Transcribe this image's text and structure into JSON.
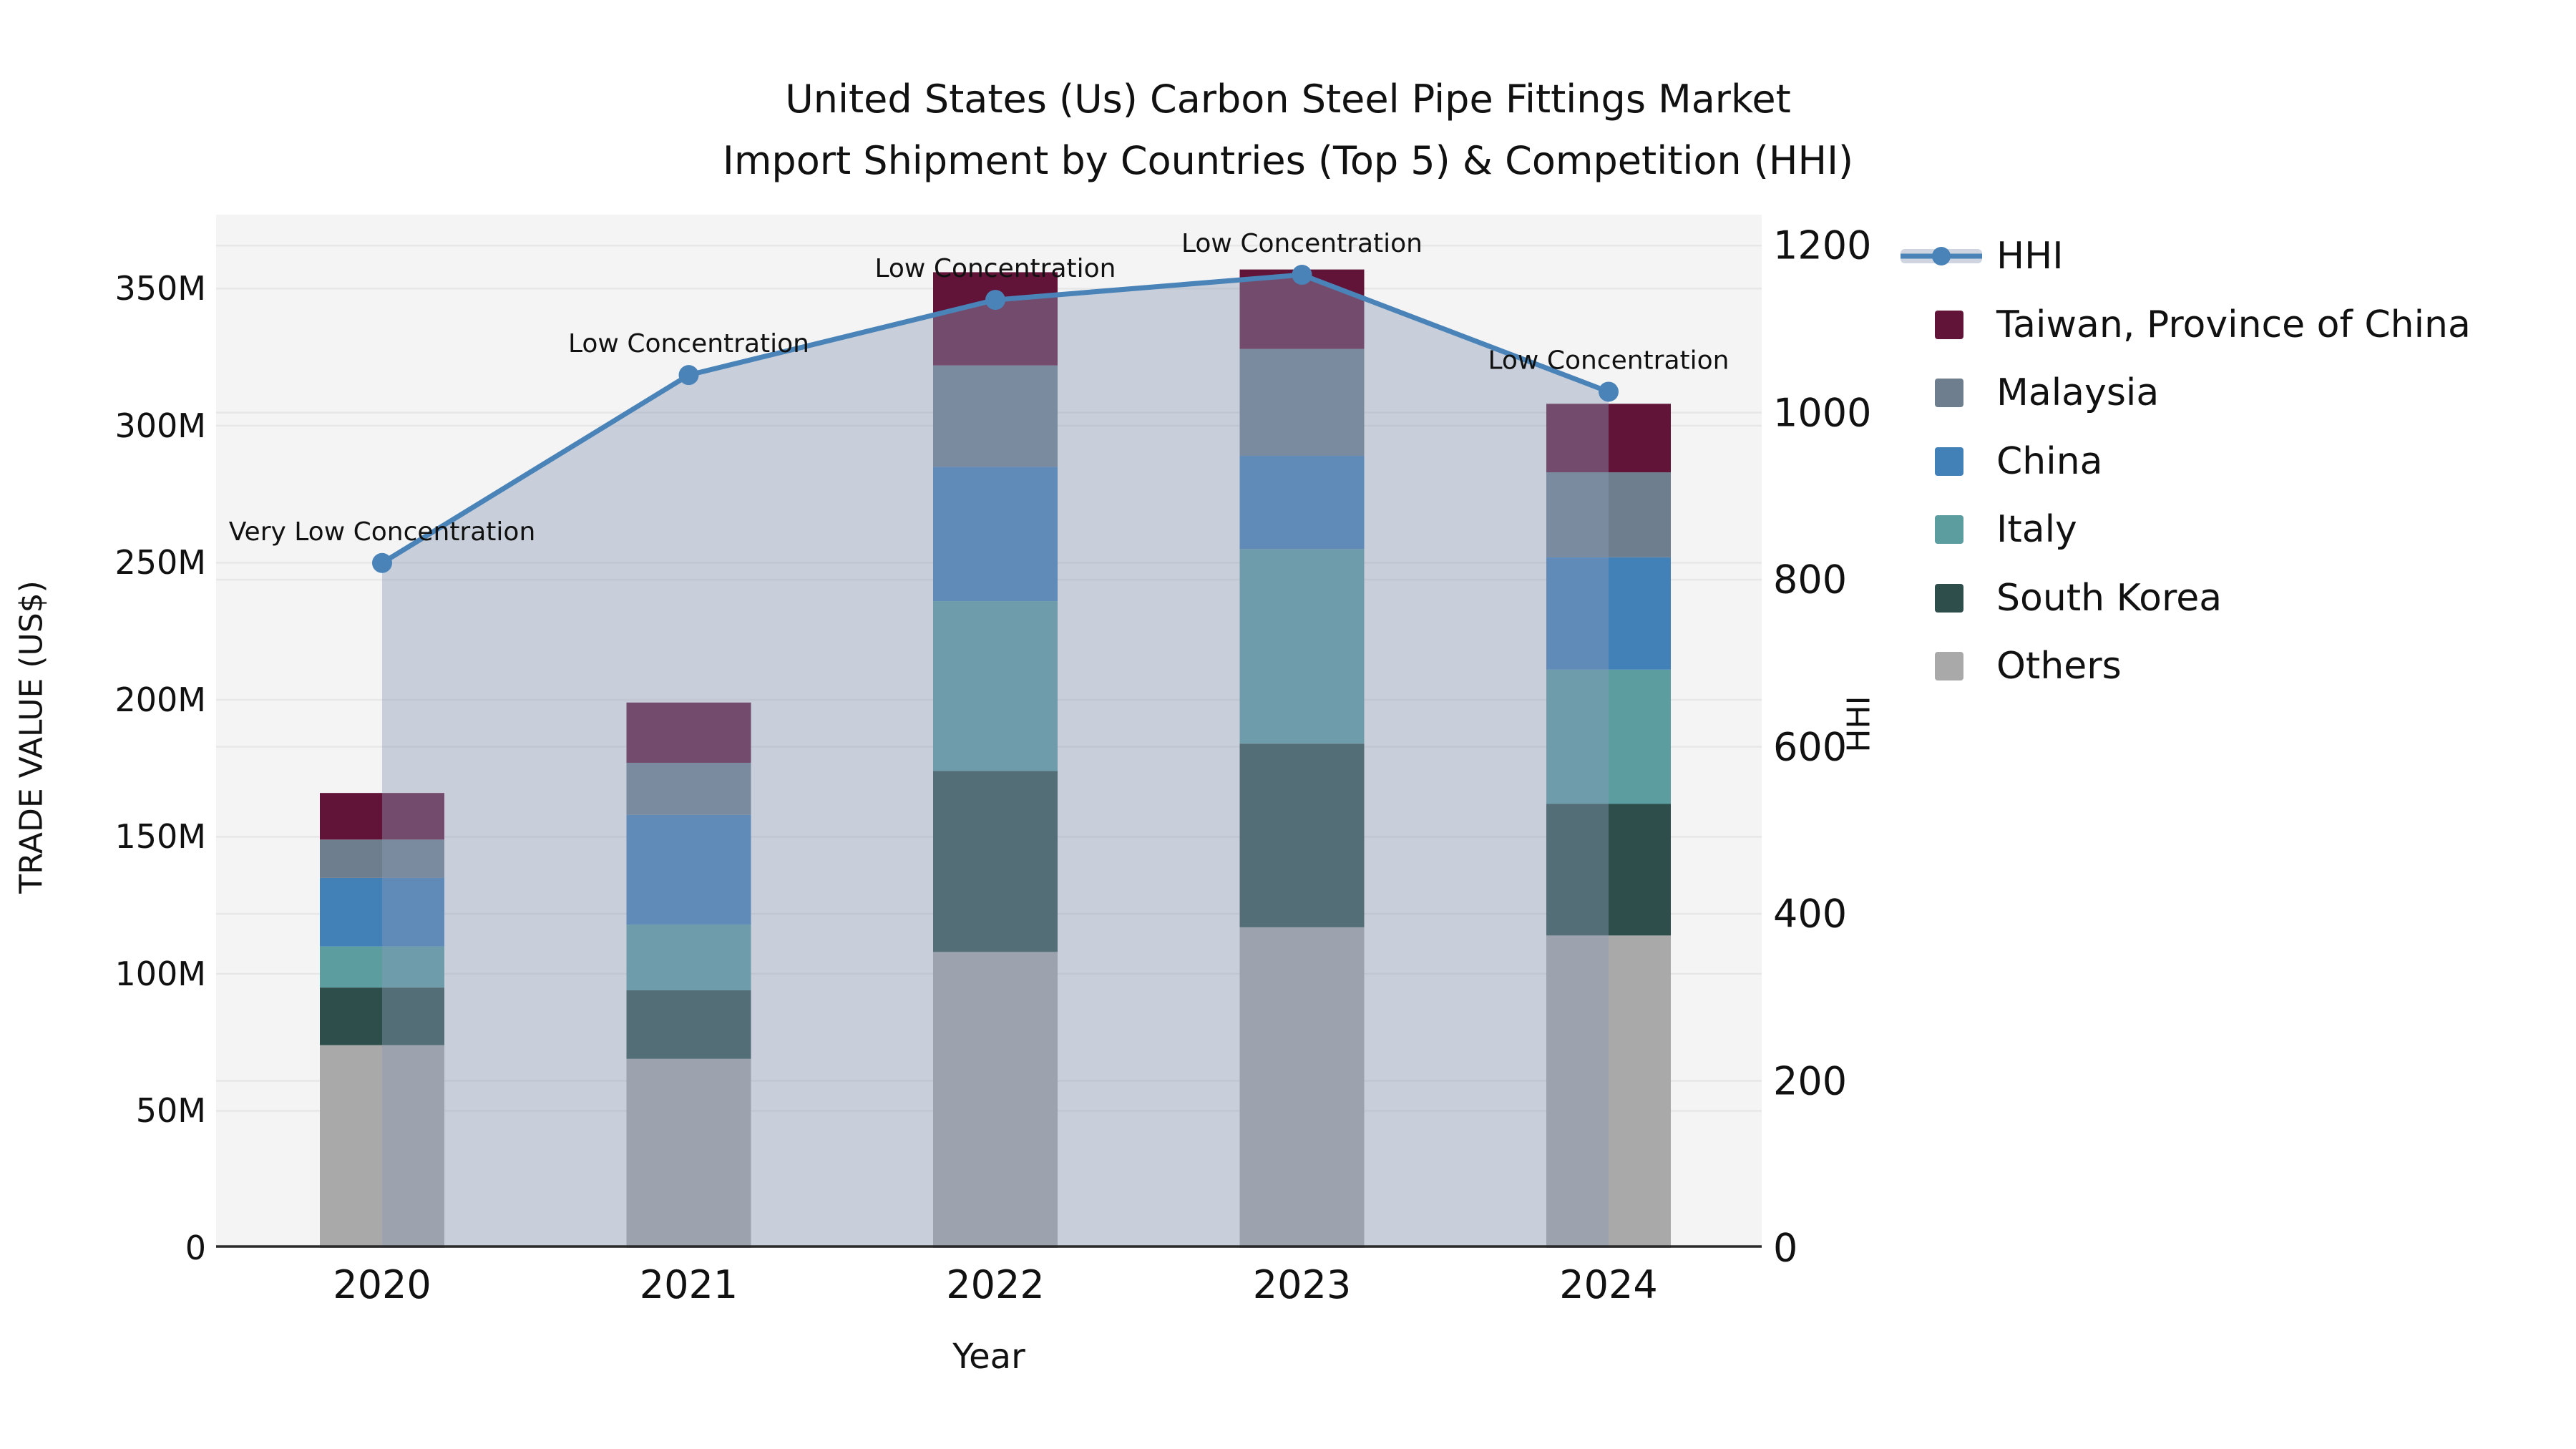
{
  "title": {
    "line1": "United States (Us) Carbon Steel Pipe Fittings Market",
    "line2": "Import Shipment by Countries (Top 5) & Competition (HHI)"
  },
  "axes": {
    "left": {
      "label": "TRADE VALUE (US$)"
    },
    "right": {
      "label": "HHI"
    },
    "x": {
      "label": "Year"
    }
  },
  "legend": {
    "items": [
      {
        "label": "HHI",
        "type": "line",
        "color": "#4a83b8"
      },
      {
        "label": "Taiwan, Province of China",
        "type": "swatch",
        "color": "#621338"
      },
      {
        "label": "Malaysia",
        "type": "swatch",
        "color": "#6f7e8e"
      },
      {
        "label": "China",
        "type": "swatch",
        "color": "#4280b8"
      },
      {
        "label": "Italy",
        "type": "swatch",
        "color": "#5c9ea0"
      },
      {
        "label": "South Korea",
        "type": "swatch",
        "color": "#2e4e4b"
      },
      {
        "label": "Others",
        "type": "swatch",
        "color": "#a9a9a9"
      }
    ]
  },
  "colors": {
    "plot_bg": "#f4f4f4",
    "grid": "#e7e7e7",
    "axis_line": "#2b2b2b",
    "hhi_line": "#4a83b8",
    "hhi_fill": "rgba(138,155,184,0.42)"
  },
  "chart_data": {
    "type": "bar",
    "subtype": "stacked-bars-with-secondary-line",
    "title": "United States (Us) Carbon Steel Pipe Fittings Market Import Shipment by Countries (Top 5) & Competition (HHI)",
    "xlabel": "Year",
    "ylabel_left": "TRADE VALUE (US$)",
    "ylabel_right": "HHI",
    "categories": [
      "2020",
      "2021",
      "2022",
      "2023",
      "2024"
    ],
    "value_unit": "million US$",
    "stack_series": [
      {
        "name": "Others",
        "color": "#a9a9a9",
        "values": [
          74,
          69,
          108,
          117,
          114
        ]
      },
      {
        "name": "South Korea",
        "color": "#2e4e4b",
        "values": [
          21,
          25,
          66,
          67,
          48
        ]
      },
      {
        "name": "Italy",
        "color": "#5c9ea0",
        "values": [
          15,
          24,
          62,
          71,
          49
        ]
      },
      {
        "name": "China",
        "color": "#4280b8",
        "values": [
          25,
          40,
          49,
          34,
          41
        ]
      },
      {
        "name": "Malaysia",
        "color": "#6f7e8e",
        "values": [
          14,
          19,
          37,
          39,
          31
        ]
      },
      {
        "name": "Taiwan, Province of China",
        "color": "#621338",
        "values": [
          17,
          22,
          34,
          29,
          25
        ]
      }
    ],
    "bar_totals": [
      166,
      199,
      356,
      357,
      308
    ],
    "line_series": {
      "name": "HHI",
      "color": "#4a83b8",
      "values": [
        820,
        1045,
        1135,
        1165,
        1025
      ]
    },
    "annotations": [
      "Very Low Concentration",
      "Low Concentration",
      "Low Concentration",
      "Low Concentration",
      "Low Concentration"
    ],
    "left_ylim": [
      0,
      377
    ],
    "right_ylim": [
      0,
      1237
    ],
    "left_ticks": {
      "values": [
        0,
        50,
        100,
        150,
        200,
        250,
        300,
        350
      ],
      "labels": [
        "0",
        "50M",
        "100M",
        "150M",
        "200M",
        "250M",
        "300M",
        "350M"
      ]
    },
    "right_ticks": {
      "values": [
        0,
        200,
        400,
        600,
        800,
        1000,
        1200
      ],
      "labels": [
        "0",
        "200",
        "400",
        "600",
        "800",
        "1000",
        "1200"
      ]
    },
    "grid": true,
    "legend_position": "right"
  }
}
